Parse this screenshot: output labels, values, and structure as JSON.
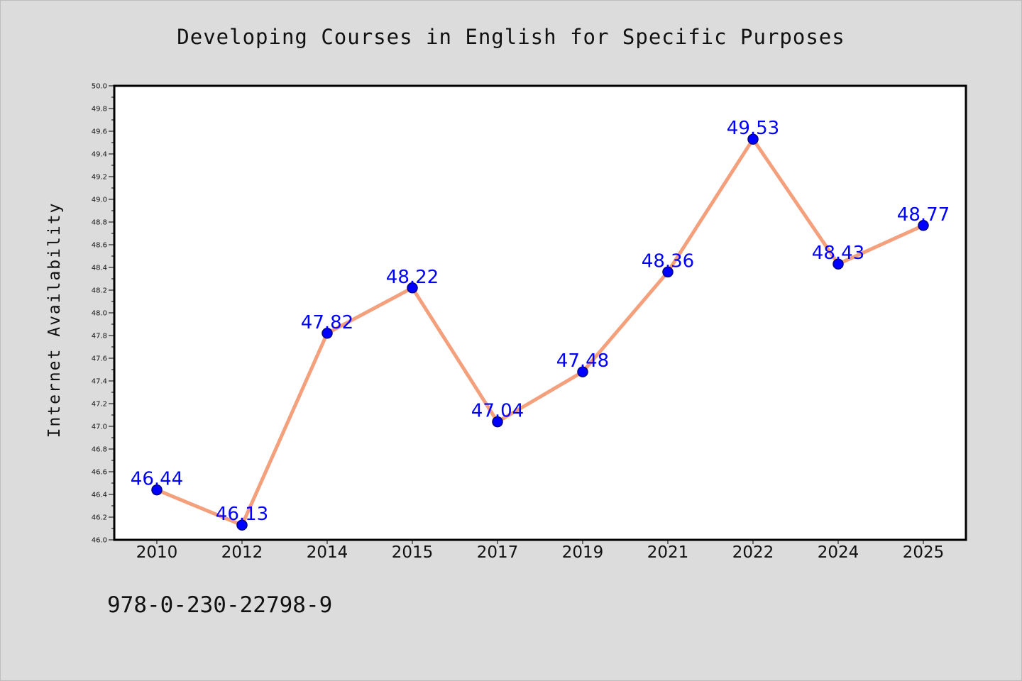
{
  "chart_data": {
    "type": "line",
    "title": "Developing Courses in English for Specific Purposes",
    "xlabel": "",
    "ylabel": "Internet Availability",
    "categories": [
      "2010",
      "2012",
      "2014",
      "2015",
      "2017",
      "2019",
      "2021",
      "2022",
      "2024",
      "2025"
    ],
    "series": [
      {
        "values": [
          46.44,
          46.13,
          47.82,
          48.22,
          47.04,
          47.48,
          48.36,
          49.53,
          48.43,
          48.77
        ],
        "line_color": "#f4a07c",
        "marker_color": "#0000ff"
      }
    ],
    "data_labels": [
      "46.44",
      "46.13",
      "47.82",
      "48.22",
      "47.04",
      "47.48",
      "48.36",
      "49.53",
      "48.43",
      "48.77"
    ],
    "ylim": [
      46.0,
      50.0
    ],
    "y_ticks": [
      "46.0",
      "46.2",
      "46.4",
      "46.6",
      "46.8",
      "47.0",
      "47.2",
      "47.4",
      "47.6",
      "47.8",
      "48.0",
      "48.2",
      "48.4",
      "48.6",
      "48.8",
      "49.0",
      "49.2",
      "49.4",
      "49.6",
      "49.8",
      "50.0"
    ],
    "grid": false,
    "legend": "none",
    "data_label_color": "#0000ff"
  },
  "footer": {
    "isbn": "978-0-230-22798-9"
  }
}
